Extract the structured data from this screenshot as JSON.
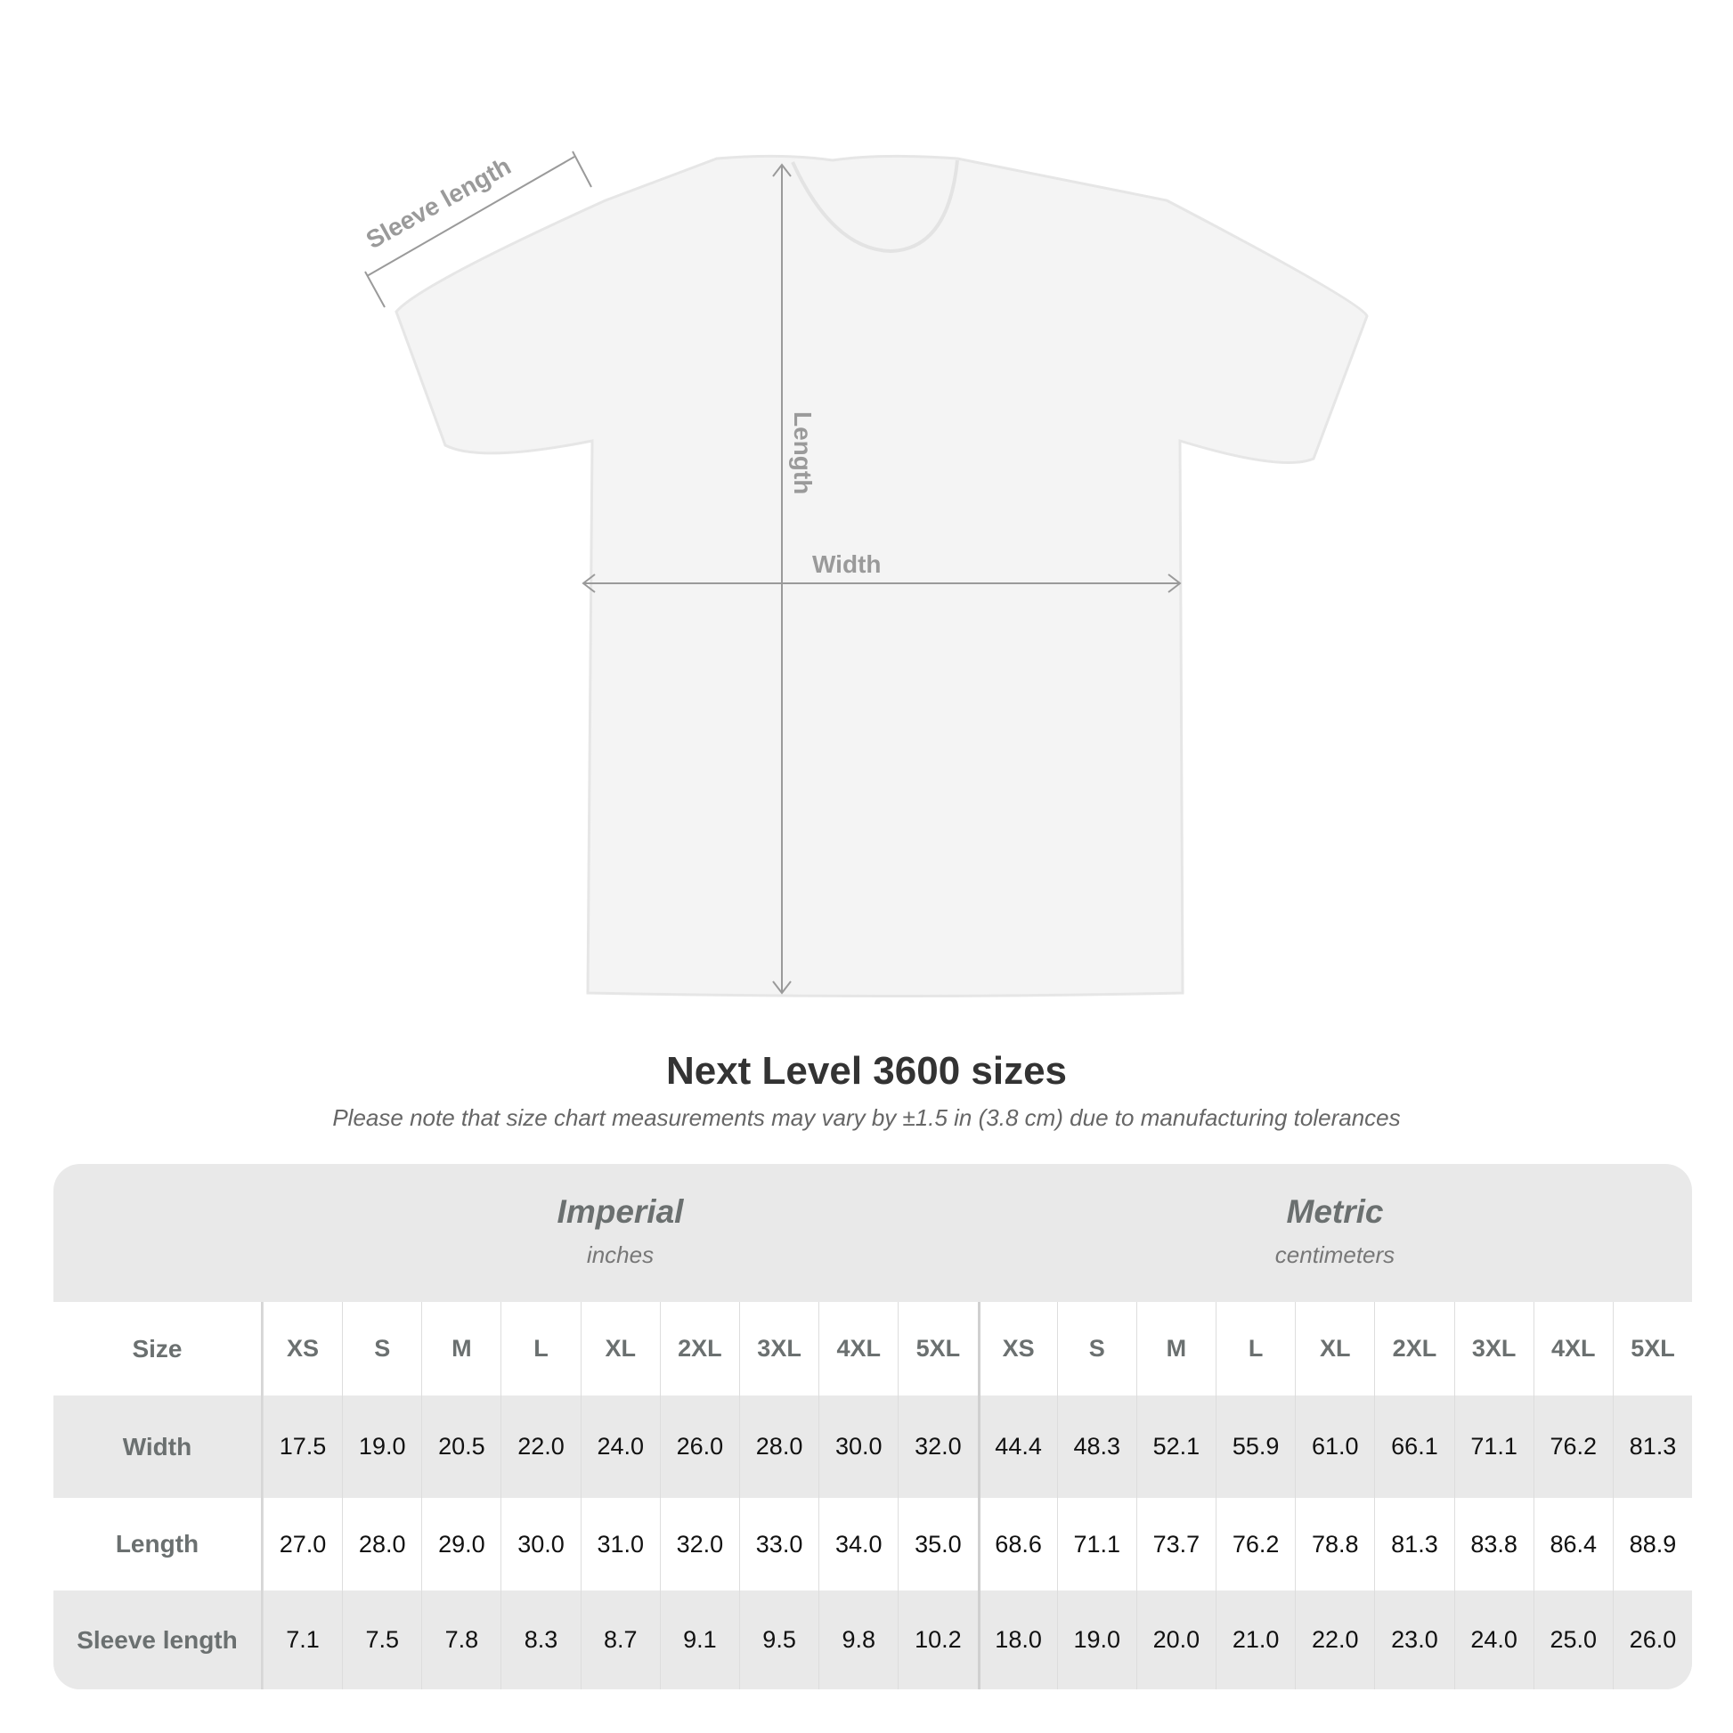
{
  "diagram": {
    "labels": {
      "sleeve": "Sleeve length",
      "length": "Length",
      "width": "Width"
    }
  },
  "title": "Next Level 3600 sizes",
  "note": "Please note that size chart measurements may vary by ±1.5 in (3.8 cm) due to manufacturing tolerances",
  "imperial": {
    "label": "Imperial",
    "unit": "inches"
  },
  "metric": {
    "label": "Metric",
    "unit": "centimeters"
  },
  "rows": [
    {
      "label": "Size",
      "imperial": [
        "XS",
        "S",
        "M",
        "L",
        "XL",
        "2XL",
        "3XL",
        "4XL",
        "5XL"
      ],
      "metric": [
        "XS",
        "S",
        "M",
        "L",
        "XL",
        "2XL",
        "3XL",
        "4XL",
        "5XL"
      ]
    },
    {
      "label": "Width",
      "imperial": [
        "17.5",
        "19.0",
        "20.5",
        "22.0",
        "24.0",
        "26.0",
        "28.0",
        "30.0",
        "32.0"
      ],
      "metric": [
        "44.4",
        "48.3",
        "52.1",
        "55.9",
        "61.0",
        "66.1",
        "71.1",
        "76.2",
        "81.3"
      ]
    },
    {
      "label": "Length",
      "imperial": [
        "27.0",
        "28.0",
        "29.0",
        "30.0",
        "31.0",
        "32.0",
        "33.0",
        "34.0",
        "35.0"
      ],
      "metric": [
        "68.6",
        "71.1",
        "73.7",
        "76.2",
        "78.8",
        "81.3",
        "83.8",
        "86.4",
        "88.9"
      ]
    },
    {
      "label": "Sleeve length",
      "imperial": [
        "7.1",
        "7.5",
        "7.8",
        "8.3",
        "8.7",
        "9.1",
        "9.5",
        "9.8",
        "10.2"
      ],
      "metric": [
        "18.0",
        "19.0",
        "20.0",
        "21.0",
        "22.0",
        "23.0",
        "24.0",
        "25.0",
        "26.0"
      ]
    }
  ]
}
